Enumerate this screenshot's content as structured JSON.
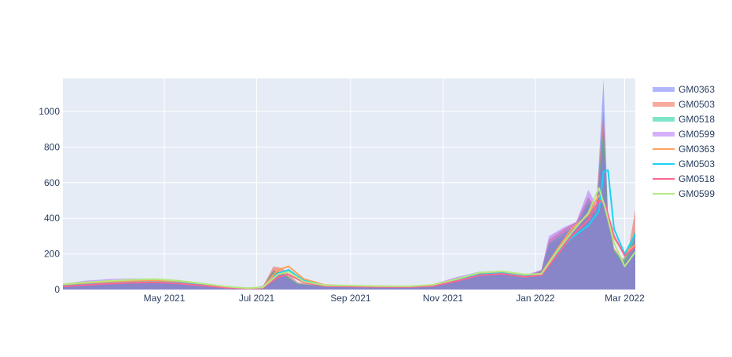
{
  "chart_data": {
    "type": "area",
    "title": "",
    "xlabel": "",
    "ylabel": "",
    "x_range": [
      "2021-02-23",
      "2022-03-08"
    ],
    "ylim": [
      0,
      1185
    ],
    "grid": true,
    "legend_position": "top-right",
    "x_ticks": [
      {
        "date": "2021-05-01",
        "label": "May 2021"
      },
      {
        "date": "2021-07-01",
        "label": "Jul 2021"
      },
      {
        "date": "2021-09-01",
        "label": "Sep 2021"
      },
      {
        "date": "2021-11-01",
        "label": "Nov 2021"
      },
      {
        "date": "2022-01-01",
        "label": "Jan 2022"
      },
      {
        "date": "2022-03-01",
        "label": "Mar 2022"
      }
    ],
    "y_ticks": [
      {
        "value": 0,
        "label": "0"
      },
      {
        "value": 200,
        "label": "200"
      },
      {
        "value": 400,
        "label": "400"
      },
      {
        "value": 600,
        "label": "600"
      },
      {
        "value": 800,
        "label": "800"
      },
      {
        "value": 1000,
        "label": "1000"
      }
    ],
    "series": [
      {
        "name": "GM0363",
        "kind": "area",
        "color": "#636efa",
        "points": [
          [
            "2021-02-23",
            30
          ],
          [
            "2021-03-10",
            45
          ],
          [
            "2021-03-25",
            50
          ],
          [
            "2021-04-10",
            55
          ],
          [
            "2021-04-25",
            58
          ],
          [
            "2021-05-10",
            50
          ],
          [
            "2021-05-25",
            35
          ],
          [
            "2021-06-10",
            15
          ],
          [
            "2021-06-25",
            5
          ],
          [
            "2021-07-05",
            20
          ],
          [
            "2021-07-12",
            110
          ],
          [
            "2021-07-18",
            90
          ],
          [
            "2021-07-28",
            30
          ],
          [
            "2021-08-15",
            18
          ],
          [
            "2021-09-01",
            16
          ],
          [
            "2021-09-20",
            14
          ],
          [
            "2021-10-10",
            14
          ],
          [
            "2021-10-25",
            25
          ],
          [
            "2021-11-10",
            60
          ],
          [
            "2021-11-25",
            90
          ],
          [
            "2021-12-10",
            95
          ],
          [
            "2021-12-25",
            70
          ],
          [
            "2022-01-05",
            100
          ],
          [
            "2022-01-10",
            250
          ],
          [
            "2022-01-20",
            300
          ],
          [
            "2022-01-28",
            350
          ],
          [
            "2022-02-05",
            480
          ],
          [
            "2022-02-10",
            420
          ],
          [
            "2022-02-15",
            1180
          ],
          [
            "2022-02-18",
            400
          ],
          [
            "2022-02-22",
            220
          ],
          [
            "2022-02-28",
            150
          ],
          [
            "2022-03-04",
            200
          ],
          [
            "2022-03-08",
            300
          ]
        ]
      },
      {
        "name": "GM0503",
        "kind": "area",
        "color": "#ef553b",
        "points": [
          [
            "2021-02-23",
            25
          ],
          [
            "2021-03-10",
            35
          ],
          [
            "2021-03-25",
            45
          ],
          [
            "2021-04-10",
            50
          ],
          [
            "2021-04-25",
            52
          ],
          [
            "2021-05-10",
            42
          ],
          [
            "2021-05-25",
            28
          ],
          [
            "2021-06-10",
            12
          ],
          [
            "2021-06-25",
            5
          ],
          [
            "2021-07-05",
            15
          ],
          [
            "2021-07-12",
            130
          ],
          [
            "2021-07-18",
            120
          ],
          [
            "2021-07-28",
            40
          ],
          [
            "2021-08-15",
            20
          ],
          [
            "2021-09-01",
            18
          ],
          [
            "2021-09-20",
            15
          ],
          [
            "2021-10-10",
            15
          ],
          [
            "2021-10-25",
            28
          ],
          [
            "2021-11-10",
            65
          ],
          [
            "2021-11-25",
            95
          ],
          [
            "2021-12-10",
            100
          ],
          [
            "2021-12-25",
            75
          ],
          [
            "2022-01-05",
            110
          ],
          [
            "2022-01-10",
            280
          ],
          [
            "2022-01-20",
            340
          ],
          [
            "2022-01-28",
            380
          ],
          [
            "2022-02-05",
            520
          ],
          [
            "2022-02-10",
            460
          ],
          [
            "2022-02-15",
            1000
          ],
          [
            "2022-02-18",
            420
          ],
          [
            "2022-02-22",
            230
          ],
          [
            "2022-02-28",
            170
          ],
          [
            "2022-03-04",
            250
          ],
          [
            "2022-03-08",
            450
          ]
        ]
      },
      {
        "name": "GM0518",
        "kind": "area",
        "color": "#00cc96",
        "points": [
          [
            "2021-02-23",
            28
          ],
          [
            "2021-03-10",
            40
          ],
          [
            "2021-03-25",
            48
          ],
          [
            "2021-04-10",
            52
          ],
          [
            "2021-04-25",
            55
          ],
          [
            "2021-05-10",
            45
          ],
          [
            "2021-05-25",
            30
          ],
          [
            "2021-06-10",
            13
          ],
          [
            "2021-06-25",
            5
          ],
          [
            "2021-07-05",
            18
          ],
          [
            "2021-07-12",
            100
          ],
          [
            "2021-07-18",
            95
          ],
          [
            "2021-07-28",
            35
          ],
          [
            "2021-08-15",
            18
          ],
          [
            "2021-09-01",
            16
          ],
          [
            "2021-09-20",
            14
          ],
          [
            "2021-10-10",
            14
          ],
          [
            "2021-10-25",
            26
          ],
          [
            "2021-11-10",
            62
          ],
          [
            "2021-11-25",
            92
          ],
          [
            "2021-12-10",
            96
          ],
          [
            "2021-12-25",
            72
          ],
          [
            "2022-01-05",
            105
          ],
          [
            "2022-01-10",
            260
          ],
          [
            "2022-01-20",
            320
          ],
          [
            "2022-01-28",
            360
          ],
          [
            "2022-02-05",
            500
          ],
          [
            "2022-02-10",
            440
          ],
          [
            "2022-02-15",
            900
          ],
          [
            "2022-02-18",
            410
          ],
          [
            "2022-02-22",
            220
          ],
          [
            "2022-02-28",
            160
          ],
          [
            "2022-03-04",
            230
          ],
          [
            "2022-03-08",
            330
          ]
        ]
      },
      {
        "name": "GM0599",
        "kind": "area",
        "color": "#ab63fa",
        "points": [
          [
            "2021-02-23",
            32
          ],
          [
            "2021-03-10",
            50
          ],
          [
            "2021-03-25",
            58
          ],
          [
            "2021-04-10",
            62
          ],
          [
            "2021-04-25",
            60
          ],
          [
            "2021-05-10",
            52
          ],
          [
            "2021-05-25",
            36
          ],
          [
            "2021-06-10",
            16
          ],
          [
            "2021-06-25",
            6
          ],
          [
            "2021-07-05",
            20
          ],
          [
            "2021-07-12",
            90
          ],
          [
            "2021-07-18",
            80
          ],
          [
            "2021-07-28",
            30
          ],
          [
            "2021-08-15",
            20
          ],
          [
            "2021-09-01",
            22
          ],
          [
            "2021-09-20",
            18
          ],
          [
            "2021-10-10",
            16
          ],
          [
            "2021-10-25",
            30
          ],
          [
            "2021-11-10",
            70
          ],
          [
            "2021-11-25",
            100
          ],
          [
            "2021-12-10",
            105
          ],
          [
            "2021-12-25",
            80
          ],
          [
            "2022-01-05",
            110
          ],
          [
            "2022-01-10",
            300
          ],
          [
            "2022-01-20",
            350
          ],
          [
            "2022-01-28",
            380
          ],
          [
            "2022-02-05",
            560
          ],
          [
            "2022-02-10",
            480
          ],
          [
            "2022-02-15",
            800
          ],
          [
            "2022-02-18",
            380
          ],
          [
            "2022-02-22",
            210
          ],
          [
            "2022-02-28",
            140
          ],
          [
            "2022-03-04",
            190
          ],
          [
            "2022-03-08",
            300
          ]
        ]
      },
      {
        "name": "GM0363",
        "kind": "line",
        "color": "#ffa15a",
        "points": [
          [
            "2021-02-23",
            25
          ],
          [
            "2021-03-10",
            35
          ],
          [
            "2021-03-25",
            42
          ],
          [
            "2021-04-10",
            48
          ],
          [
            "2021-04-25",
            50
          ],
          [
            "2021-05-10",
            45
          ],
          [
            "2021-05-25",
            32
          ],
          [
            "2021-06-10",
            15
          ],
          [
            "2021-06-25",
            7
          ],
          [
            "2021-07-05",
            12
          ],
          [
            "2021-07-15",
            110
          ],
          [
            "2021-07-22",
            130
          ],
          [
            "2021-08-01",
            60
          ],
          [
            "2021-08-15",
            25
          ],
          [
            "2021-09-01",
            20
          ],
          [
            "2021-09-20",
            18
          ],
          [
            "2021-10-10",
            17
          ],
          [
            "2021-10-25",
            25
          ],
          [
            "2021-11-10",
            55
          ],
          [
            "2021-11-25",
            90
          ],
          [
            "2021-12-10",
            98
          ],
          [
            "2021-12-25",
            80
          ],
          [
            "2022-01-05",
            90
          ],
          [
            "2022-01-15",
            220
          ],
          [
            "2022-01-25",
            340
          ],
          [
            "2022-02-05",
            420
          ],
          [
            "2022-02-12",
            530
          ],
          [
            "2022-02-16",
            470
          ],
          [
            "2022-02-22",
            290
          ],
          [
            "2022-03-01",
            200
          ],
          [
            "2022-03-08",
            250
          ]
        ]
      },
      {
        "name": "GM0503",
        "kind": "line",
        "color": "#19d3f3",
        "points": [
          [
            "2021-02-23",
            20
          ],
          [
            "2021-03-10",
            28
          ],
          [
            "2021-03-25",
            35
          ],
          [
            "2021-04-10",
            40
          ],
          [
            "2021-04-25",
            42
          ],
          [
            "2021-05-10",
            38
          ],
          [
            "2021-05-25",
            26
          ],
          [
            "2021-06-10",
            12
          ],
          [
            "2021-06-25",
            6
          ],
          [
            "2021-07-05",
            10
          ],
          [
            "2021-07-15",
            90
          ],
          [
            "2021-07-22",
            110
          ],
          [
            "2021-08-01",
            50
          ],
          [
            "2021-08-15",
            22
          ],
          [
            "2021-09-01",
            18
          ],
          [
            "2021-09-20",
            16
          ],
          [
            "2021-10-10",
            15
          ],
          [
            "2021-10-25",
            22
          ],
          [
            "2021-11-10",
            50
          ],
          [
            "2021-11-25",
            85
          ],
          [
            "2021-12-10",
            92
          ],
          [
            "2021-12-25",
            75
          ],
          [
            "2022-01-05",
            85
          ],
          [
            "2022-01-15",
            200
          ],
          [
            "2022-01-25",
            290
          ],
          [
            "2022-02-05",
            360
          ],
          [
            "2022-02-12",
            440
          ],
          [
            "2022-02-15",
            660
          ],
          [
            "2022-02-18",
            670
          ],
          [
            "2022-02-22",
            340
          ],
          [
            "2022-03-01",
            200
          ],
          [
            "2022-03-08",
            310
          ]
        ]
      },
      {
        "name": "GM0518",
        "kind": "line",
        "color": "#ff6692",
        "points": [
          [
            "2021-02-23",
            18
          ],
          [
            "2021-03-10",
            26
          ],
          [
            "2021-03-25",
            33
          ],
          [
            "2021-04-10",
            38
          ],
          [
            "2021-04-25",
            40
          ],
          [
            "2021-05-10",
            34
          ],
          [
            "2021-05-25",
            24
          ],
          [
            "2021-06-10",
            11
          ],
          [
            "2021-06-25",
            5
          ],
          [
            "2021-07-05",
            9
          ],
          [
            "2021-07-15",
            70
          ],
          [
            "2021-07-22",
            85
          ],
          [
            "2021-08-01",
            40
          ],
          [
            "2021-08-15",
            20
          ],
          [
            "2021-09-01",
            17
          ],
          [
            "2021-09-20",
            15
          ],
          [
            "2021-10-10",
            14
          ],
          [
            "2021-10-25",
            20
          ],
          [
            "2021-11-10",
            48
          ],
          [
            "2021-11-25",
            80
          ],
          [
            "2021-12-10",
            88
          ],
          [
            "2021-12-25",
            72
          ],
          [
            "2022-01-05",
            80
          ],
          [
            "2022-01-15",
            190
          ],
          [
            "2022-01-25",
            300
          ],
          [
            "2022-02-05",
            390
          ],
          [
            "2022-02-12",
            500
          ],
          [
            "2022-02-16",
            480
          ],
          [
            "2022-02-22",
            300
          ],
          [
            "2022-03-01",
            190
          ],
          [
            "2022-03-08",
            240
          ]
        ]
      },
      {
        "name": "GM0599",
        "kind": "line",
        "color": "#b6e880",
        "points": [
          [
            "2021-02-23",
            30
          ],
          [
            "2021-03-10",
            40
          ],
          [
            "2021-03-25",
            48
          ],
          [
            "2021-04-10",
            55
          ],
          [
            "2021-04-25",
            58
          ],
          [
            "2021-05-10",
            50
          ],
          [
            "2021-05-25",
            35
          ],
          [
            "2021-06-10",
            17
          ],
          [
            "2021-06-25",
            8
          ],
          [
            "2021-07-05",
            12
          ],
          [
            "2021-07-15",
            85
          ],
          [
            "2021-07-22",
            100
          ],
          [
            "2021-08-01",
            45
          ],
          [
            "2021-08-15",
            24
          ],
          [
            "2021-09-01",
            22
          ],
          [
            "2021-09-20",
            19
          ],
          [
            "2021-10-10",
            18
          ],
          [
            "2021-10-25",
            26
          ],
          [
            "2021-11-10",
            58
          ],
          [
            "2021-11-25",
            95
          ],
          [
            "2021-12-10",
            102
          ],
          [
            "2021-12-25",
            85
          ],
          [
            "2022-01-05",
            88
          ],
          [
            "2022-01-15",
            210
          ],
          [
            "2022-01-25",
            320
          ],
          [
            "2022-02-05",
            430
          ],
          [
            "2022-02-12",
            570
          ],
          [
            "2022-02-16",
            460
          ],
          [
            "2022-02-22",
            260
          ],
          [
            "2022-03-01",
            130
          ],
          [
            "2022-03-08",
            210
          ]
        ]
      }
    ]
  }
}
